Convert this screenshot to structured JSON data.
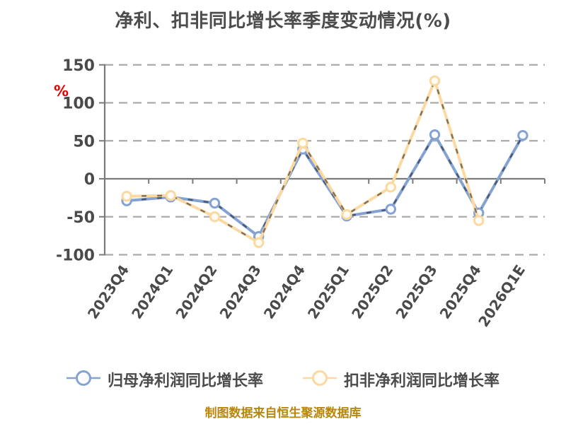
{
  "title": "净利、扣非同比增长率季度变动情况(%)",
  "footer_source": "制图数据来自恒生聚源数据库",
  "chart_data": {
    "type": "line",
    "title": "净利、扣非同比增长率季度变动情况(%)",
    "categories": [
      "2023Q4",
      "2024Q1",
      "2024Q2",
      "2024Q3",
      "2024Q4",
      "2025Q1",
      "2025Q2",
      "2025Q3",
      "2025Q4",
      "2026Q1E"
    ],
    "series": [
      {
        "name": "归母净利润同比增长率",
        "color": "#84A3D2",
        "marker_fill": "#FDFDFF",
        "values": [
          -29,
          -24,
          -32,
          -76,
          39,
          -49,
          -40,
          58,
          -45,
          57
        ]
      },
      {
        "name": "扣非净利润同比增长率",
        "color": "#FBD9A1",
        "marker_fill": "#FFFDF6",
        "values": [
          -23,
          -22,
          -50,
          -84,
          47,
          -47,
          -11,
          129,
          -55,
          null
        ]
      }
    ],
    "xlabel": "",
    "ylabel": "%",
    "ylim": [
      -100,
      150
    ],
    "yticks": [
      150,
      100,
      50,
      0,
      -50,
      -100
    ],
    "grid": "horizontal-dashed",
    "legend_position": "bottom"
  },
  "colors": {
    "background": "#ffffff",
    "title_text": "#4c4c4c",
    "tick_text": "#4a4a4a",
    "axis_line": "#7a7a7a",
    "gridline": "#ababab",
    "unit_label": "#e60000",
    "legend_text": "#4c4c4c",
    "footer_text": "#b8860b",
    "line_overlay_dash": "rgba(25,25,35,0.55)"
  }
}
